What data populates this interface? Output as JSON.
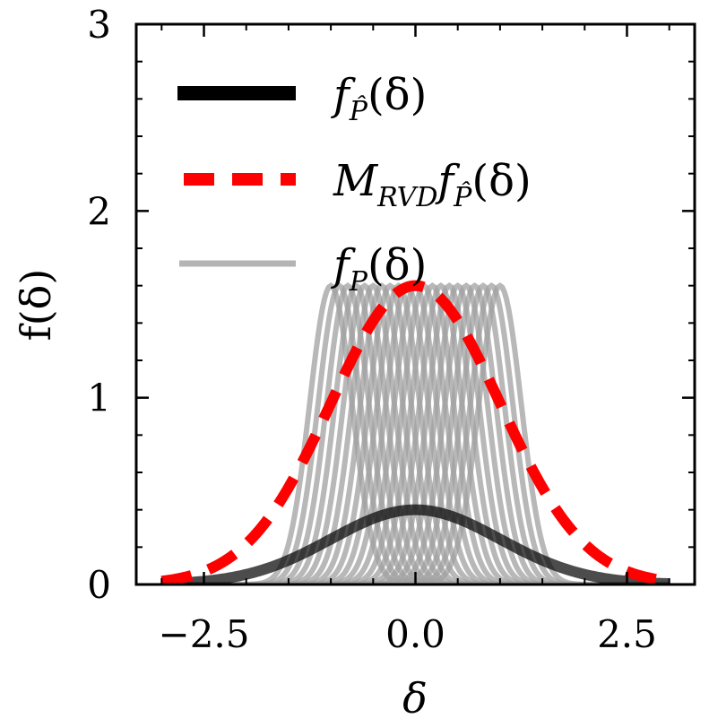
{
  "chart_data": {
    "type": "line",
    "title": "",
    "xlabel": "δ",
    "ylabel": "f(δ)",
    "xlim": [
      -3.3,
      3.3
    ],
    "ylim": [
      0,
      3
    ],
    "xticks": [
      -2.5,
      0.0,
      2.5
    ],
    "xtick_labels": [
      "−2.5",
      "0.0",
      "2.5"
    ],
    "yticks": [
      0,
      1,
      2,
      3
    ],
    "ytick_labels": [
      "0",
      "1",
      "2",
      "3"
    ],
    "x_minor_step": 0.5,
    "y_minor_step": 0.2,
    "legend_position": "upper-left",
    "x_range": [
      -3.0,
      3.0
    ],
    "series": [
      {
        "name": "f_P̂(δ)",
        "kind": "normal",
        "mean": 0.0,
        "sd": 1.0,
        "scale": 1.0,
        "peak": 0.4,
        "color": "#000000",
        "style": "solid"
      },
      {
        "name": "M_RVD f_P̂(δ)",
        "kind": "normal",
        "mean": 0.0,
        "sd": 1.0,
        "scale": 4.0,
        "peak": 1.6,
        "color": "#ff0000",
        "style": "dashed"
      },
      {
        "name": "f_P(δ)",
        "kind": "normal-family",
        "sd": 0.25,
        "means": [
          -1.0,
          -0.9,
          -0.8,
          -0.7,
          -0.6,
          -0.5,
          -0.4,
          -0.3,
          -0.2,
          -0.1,
          0.0,
          0.1,
          0.2,
          0.3,
          0.4,
          0.5,
          0.6,
          0.7,
          0.8,
          0.9,
          1.0
        ],
        "peak": 1.6,
        "color": "#a0a0a0",
        "style": "solid"
      }
    ]
  },
  "legend": {
    "items": [
      {
        "base": "f",
        "sub": "P̂",
        "tail": "(δ)",
        "color": "#000000",
        "style": "solid"
      },
      {
        "base": "M",
        "sub1": "RVD",
        "base2": "f",
        "sub": "P̂",
        "tail": "(δ)",
        "color": "#ff0000",
        "style": "dashed"
      },
      {
        "base": "f",
        "sub": "P",
        "tail": "(δ)",
        "color": "#b4b4b4",
        "style": "solid"
      }
    ]
  }
}
